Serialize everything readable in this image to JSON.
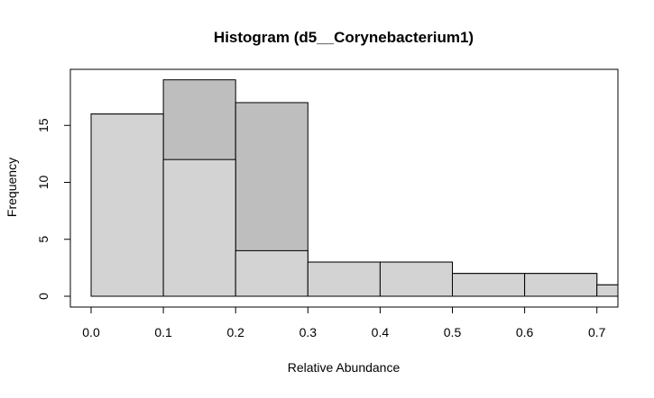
{
  "chart_data": {
    "type": "bar",
    "title": "Histogram (d5__Corynebacterium1)",
    "xlabel": "Relative Abundance",
    "ylabel": "Frequency",
    "xlim": [
      -0.03,
      0.73
    ],
    "ylim": [
      0,
      19
    ],
    "x_ticks": [
      "0.0",
      "0.1",
      "0.2",
      "0.3",
      "0.4",
      "0.5",
      "0.6",
      "0.7"
    ],
    "y_ticks": [
      "0",
      "5",
      "10",
      "15"
    ],
    "grid": false,
    "legend": "none",
    "bin_edges": [
      0.0,
      0.1,
      0.2,
      0.3,
      0.4,
      0.5,
      0.6,
      0.7,
      0.8
    ],
    "series": [
      {
        "values": [
          16,
          19,
          17,
          3,
          3,
          2,
          2,
          1
        ],
        "color": "#bebebe"
      },
      {
        "values": [
          16,
          12,
          4,
          3,
          3,
          2,
          2,
          1
        ],
        "color": "#d3d3d3"
      }
    ]
  }
}
